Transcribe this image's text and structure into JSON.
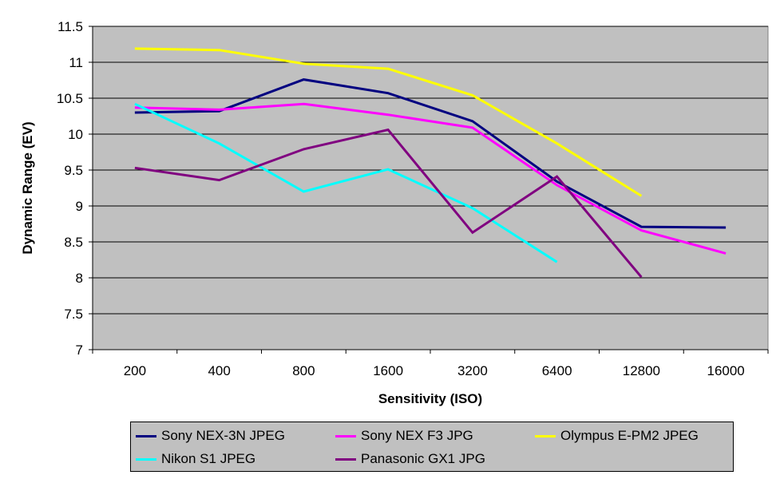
{
  "chart_data": {
    "type": "line",
    "title": "",
    "xlabel": "Sensitivity (ISO)",
    "ylabel": "Dynamic Range (EV)",
    "categories": [
      "200",
      "400",
      "800",
      "1600",
      "3200",
      "6400",
      "12800",
      "16000"
    ],
    "ylim": [
      7,
      11.5
    ],
    "ytick_step": 0.5,
    "yticks": [
      "7",
      "7.5",
      "8",
      "8.5",
      "9",
      "9.5",
      "10",
      "10.5",
      "11",
      "11.5"
    ],
    "grid": true,
    "legend_position": "bottom",
    "plot_background": "#c0c0c0",
    "series": [
      {
        "name": "Sony NEX-3N JPEG",
        "color": "#000080",
        "values": [
          10.3,
          10.32,
          10.76,
          10.57,
          10.18,
          9.34,
          8.71,
          8.7
        ]
      },
      {
        "name": "Sony NEX F3 JPG",
        "color": "#ff00ff",
        "values": [
          10.37,
          10.34,
          10.42,
          10.27,
          10.09,
          9.29,
          8.66,
          8.34
        ]
      },
      {
        "name": "Olympus E-PM2 JPEG",
        "color": "#ffff00",
        "values": [
          11.19,
          11.17,
          10.98,
          10.91,
          10.54,
          9.87,
          9.14,
          null
        ]
      },
      {
        "name": "Nikon S1 JPEG",
        "color": "#00ffff",
        "values": [
          10.42,
          9.87,
          9.2,
          9.51,
          8.97,
          8.22,
          null,
          null
        ]
      },
      {
        "name": "Panasonic GX1 JPG",
        "color": "#800080",
        "values": [
          9.53,
          9.36,
          9.79,
          10.06,
          8.63,
          9.41,
          8.01,
          null
        ]
      }
    ]
  }
}
